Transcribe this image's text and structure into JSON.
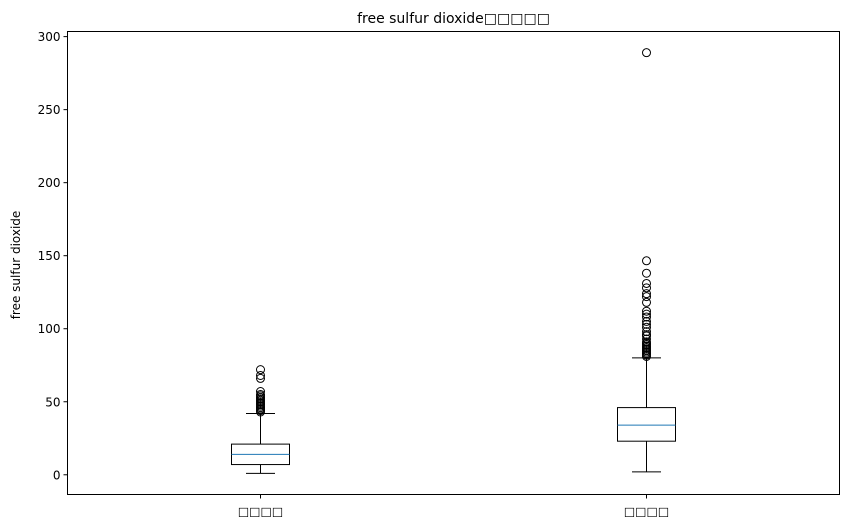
{
  "chart_data": {
    "type": "boxplot",
    "title": "free sulfur dioxide□□□□□",
    "ylabel": "free sulfur dioxide",
    "xlabel": "",
    "ylim": [
      -13.5,
      303.5
    ],
    "yticks": [
      0,
      50,
      100,
      150,
      200,
      250,
      300
    ],
    "grid": false,
    "categories": [
      "□□□□",
      "□□□□"
    ],
    "series": [
      {
        "whisker_low": 1,
        "q1": 7,
        "median": 14,
        "q3": 21,
        "whisker_high": 42,
        "outliers": [
          43,
          44,
          45,
          46,
          47,
          48,
          49,
          50,
          51,
          52,
          53,
          54,
          55,
          57,
          66,
          68,
          72
        ]
      },
      {
        "whisker_low": 2,
        "q1": 23,
        "median": 34,
        "q3": 46,
        "whisker_high": 80,
        "outliers": [
          81,
          82,
          83,
          84,
          85,
          86,
          87,
          88,
          89,
          90,
          91,
          93,
          95,
          96,
          98,
          101,
          103,
          105,
          108,
          110,
          112,
          118,
          122,
          124,
          128,
          131,
          138,
          146.5,
          289
        ]
      }
    ],
    "colors": {
      "box": "#000000",
      "median": "#1f77b4",
      "outlier": "#000000"
    }
  }
}
